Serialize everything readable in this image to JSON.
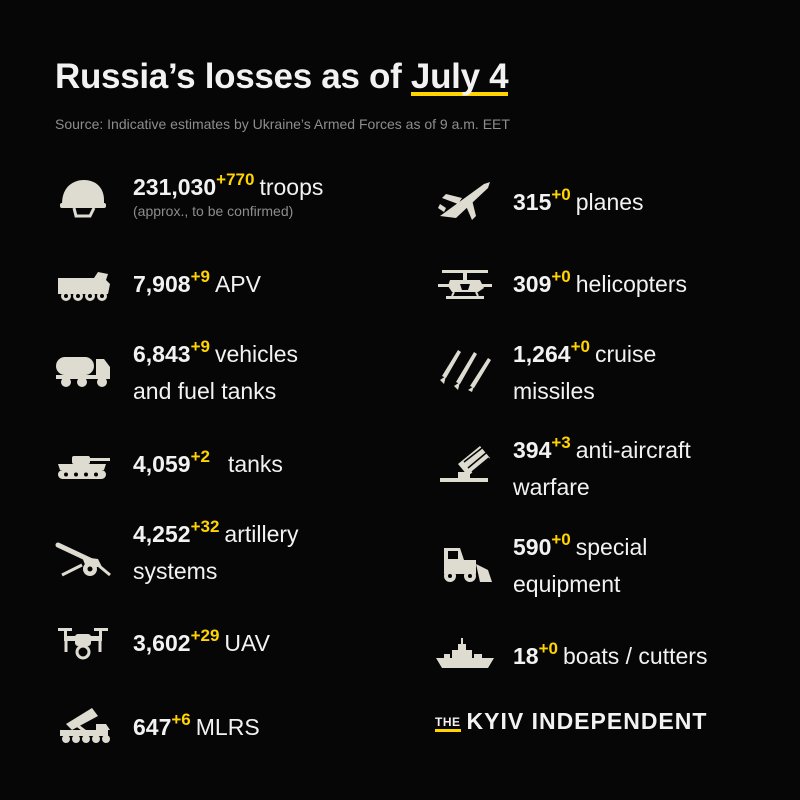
{
  "header": {
    "title_prefix": "Russia’s losses as of ",
    "title_date": "July 4",
    "source": "Source: Indicative estimates by Ukraine’s Armed Forces as of 9 a.m. EET"
  },
  "left": [
    {
      "icon": "helmet-icon",
      "number": "231,030",
      "delta": "+770",
      "label": "troops",
      "note": "(approx., to be confirmed)"
    },
    {
      "icon": "apv-icon",
      "number": "7,908",
      "delta": "+9",
      "label": "APV"
    },
    {
      "icon": "fuel-truck-icon",
      "number": "6,843",
      "delta": "+9",
      "label": "vehicles",
      "label2": "and fuel tanks"
    },
    {
      "icon": "tank-icon",
      "number": "4,059",
      "delta": "+2",
      "label": "tanks"
    },
    {
      "icon": "artillery-icon",
      "number": "4,252",
      "delta": "+32",
      "label": "artillery",
      "label2": "systems"
    },
    {
      "icon": "drone-icon",
      "number": "3,602",
      "delta": "+29",
      "label": "UAV"
    },
    {
      "icon": "mlrs-icon",
      "number": "647",
      "delta": "+6",
      "label": "MLRS"
    }
  ],
  "right": [
    {
      "icon": "plane-icon",
      "number": "315",
      "delta": "+0",
      "label": "planes"
    },
    {
      "icon": "helicopter-icon",
      "number": "309",
      "delta": "+0",
      "label": "helicopters"
    },
    {
      "icon": "missiles-icon",
      "number": "1,264",
      "delta": "+0",
      "label": "cruise",
      "label2": "missiles"
    },
    {
      "icon": "anti-aircraft-icon",
      "number": "394",
      "delta": "+3",
      "label": "anti-aircraft",
      "label2": "warfare"
    },
    {
      "icon": "special-equipment-icon",
      "number": "590",
      "delta": "+0",
      "label": "special",
      "label2": "equipment"
    },
    {
      "icon": "boat-icon",
      "number": "18",
      "delta": "+0",
      "label": "boats / cutters"
    }
  ],
  "logo": {
    "the": "THE",
    "name": "KYIV INDEPENDENT"
  },
  "colors": {
    "background": "#060606",
    "accent": "#ffd400",
    "icon": "#dedbd0",
    "muted": "#8d8d8d"
  }
}
